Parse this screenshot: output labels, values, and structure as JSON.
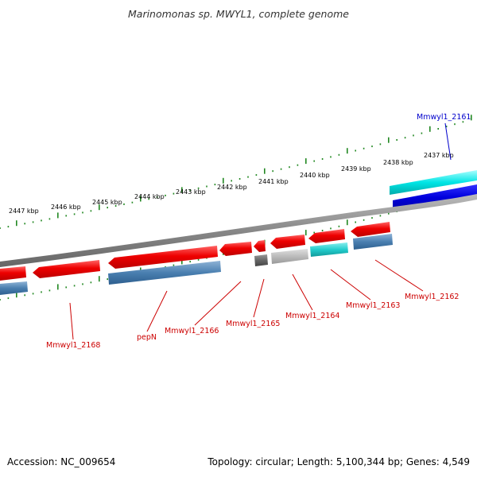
{
  "title": "Marinomonas sp. MWYL1, complete genome",
  "footer": {
    "accession": "Accession: NC_009654",
    "summary": "Topology: circular; Length: 5,100,344 bp; Genes: 4,549"
  },
  "scale_labels": [
    "2447 kbp",
    "2446 kbp",
    "2445 kbp",
    "2444 kbp",
    "2443 kbp",
    "2442 kbp",
    "2441 kbp",
    "2440 kbp",
    "2439 kbp",
    "2438 kbp",
    "2437 kbp"
  ],
  "gene_labels": [
    {
      "text": "Mmwyl1_2161",
      "strand": "forward"
    },
    {
      "text": "Mmwyl1_2162",
      "strand": "reverse"
    },
    {
      "text": "Mmwyl1_2163",
      "strand": "reverse"
    },
    {
      "text": "Mmwyl1_2164",
      "strand": "reverse"
    },
    {
      "text": "Mmwyl1_2165",
      "strand": "reverse"
    },
    {
      "text": "Mmwyl1_2166",
      "strand": "reverse"
    },
    {
      "text": "pepN",
      "strand": "reverse"
    },
    {
      "text": "Mmwyl1_2168",
      "strand": "reverse"
    }
  ],
  "colors": {
    "backbone": "#888888",
    "gene_reverse": "#ee0000",
    "gene_forward": "#0000dd",
    "cds_reverse": "#4a7fb0",
    "cds_forward": "#00dddd",
    "rna_dark": "#666666",
    "rna_light": "#bbbbbb",
    "cds_cyan": "#22cccc",
    "tick": "#228822",
    "label_reverse": "#cc0000",
    "label_forward": "#0000cc"
  }
}
